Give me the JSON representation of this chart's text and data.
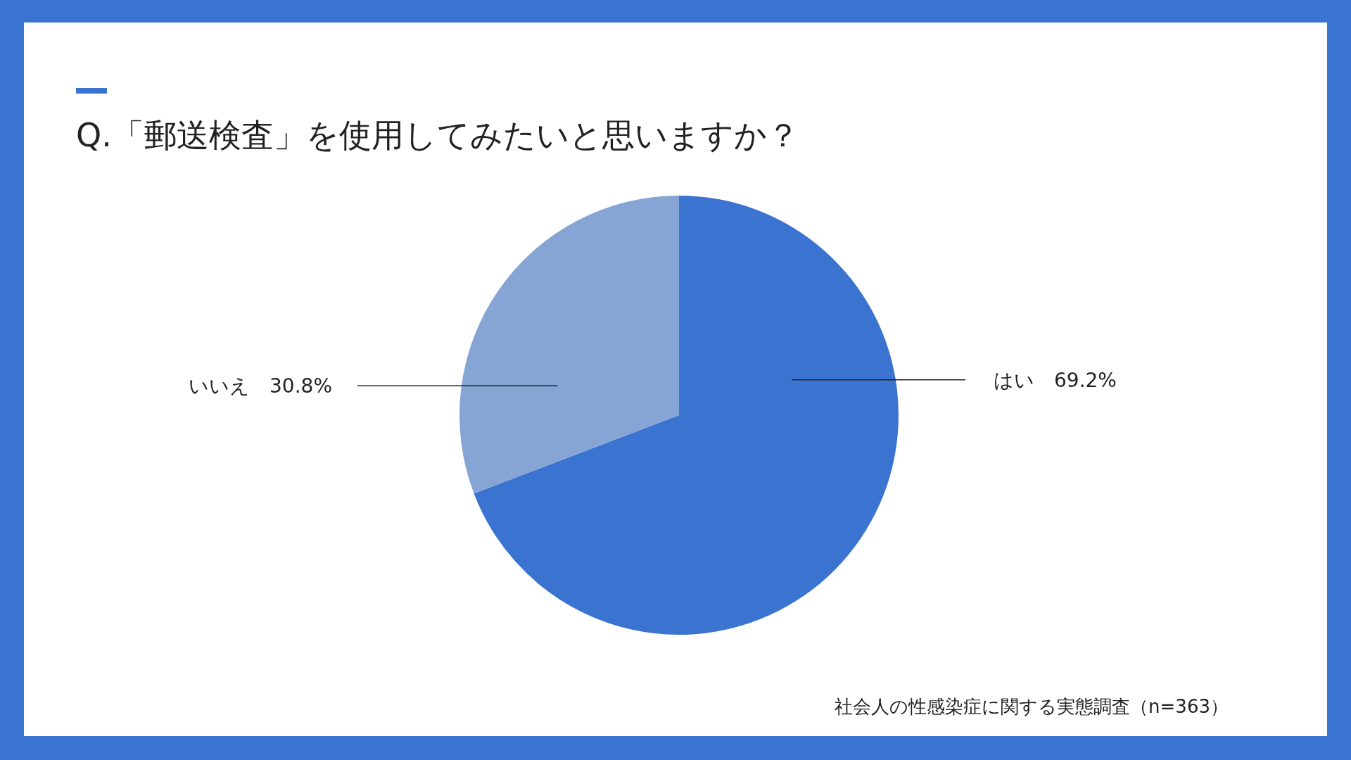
{
  "chart_data": {
    "type": "pie",
    "title": "Q.「郵送検査」を使用してみたいと思いますか？",
    "categories": [
      "はい",
      "いいえ"
    ],
    "values": [
      69.2,
      30.8
    ],
    "colors": [
      "#3b73d1",
      "#86a5d4"
    ],
    "value_labels": [
      "69.2%",
      "30.8%"
    ],
    "legend": false,
    "annotations": [
      "社会人の性感染症に関する実態調査（n=363）"
    ]
  }
}
